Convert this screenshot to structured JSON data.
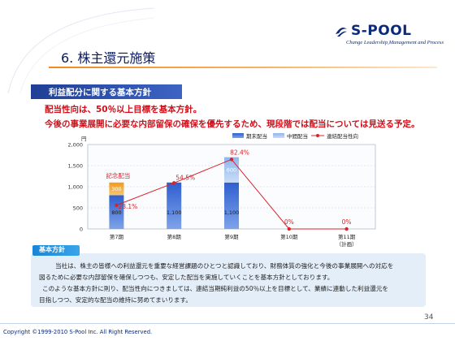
{
  "logo": {
    "name": "S-POOL",
    "tagline": "Change Leadership,Management and Process"
  },
  "title": "6. 株主還元施策",
  "section_heading": "利益配分に関する基本方針",
  "policy_lines": [
    "配当性向は、50％以上目標を基本方針。",
    "今後の事業展開に必要な内部留保の確保を優先するため、現段階では配当については見送る予定。"
  ],
  "chart_data": {
    "type": "bar",
    "unit_label": "円",
    "categories": [
      "第7期",
      "第8期",
      "第9期",
      "第10期",
      "第11期"
    ],
    "category_sub": [
      "",
      "",
      "",
      "",
      "（計画）"
    ],
    "ylim": [
      0,
      2000
    ],
    "yticks": [
      "0",
      "500",
      "1,000",
      "1,500",
      "2,000"
    ],
    "ytick_values": [
      0,
      500,
      1000,
      1500,
      2000
    ],
    "series": [
      {
        "name": "期末配当",
        "values": [
          800,
          1100,
          1100,
          0,
          0
        ],
        "labels": [
          "800",
          "1,100",
          "1,100",
          "",
          ""
        ],
        "color": "#3a6fd8"
      },
      {
        "name": "中間配当",
        "values": [
          300,
          0,
          600,
          0,
          0
        ],
        "labels": [
          "300",
          "",
          "600",
          "",
          ""
        ],
        "color": "#9ec3ef"
      },
      {
        "name": "連結配当性向",
        "values": [
          28.1,
          54.5,
          82.4,
          0,
          0
        ],
        "labels": [
          "28.1%",
          "54.5%",
          "82.4%",
          "0%",
          "0%"
        ],
        "color": "#d9232b"
      }
    ],
    "pct_max": 100,
    "annotation": "記念配当",
    "commemorative_color": "#f5a623",
    "grid": true,
    "legend": "top-right"
  },
  "bottom": {
    "label": "基本方針",
    "lines": [
      "当社は、株主の皆様への利益還元を重要な経営課題のひとつと認識しており、財務体質の強化と今後の事業展開への対応を",
      "図るために必要な内部留保を確保しつつも、安定した配当を実施していくことを基本方針としております。",
      "このような基本方針に則り、配当性向につきましては、連結当期純利益の50％以上を目標として、業績に連動した利益還元を",
      "目指しつつ、安定的な配当の維持に努めてまいります。"
    ]
  },
  "page_number": "34",
  "copyright": "Copyright ©1999-2010 S-Pool Inc. All Right Reserved."
}
